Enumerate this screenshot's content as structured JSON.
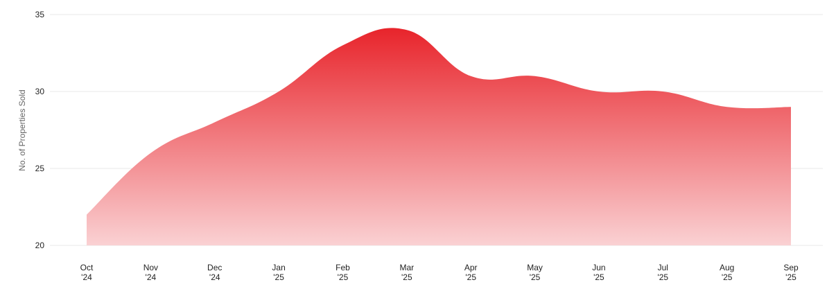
{
  "chart_data": {
    "type": "area",
    "title": "",
    "ylabel": "No. of Properties Sold",
    "xlabel": "",
    "ylim": [
      20,
      35
    ],
    "yticks": [
      20,
      25,
      30,
      35
    ],
    "categories": [
      [
        "Oct",
        "'24"
      ],
      [
        "Nov",
        "'24"
      ],
      [
        "Dec",
        "'24"
      ],
      [
        "Jan",
        "'25"
      ],
      [
        "Feb",
        "'25"
      ],
      [
        "Mar",
        "'25"
      ],
      [
        "Apr",
        "'25"
      ],
      [
        "May",
        "'25"
      ],
      [
        "Jun",
        "'25"
      ],
      [
        "Jul",
        "'25"
      ],
      [
        "Aug",
        "'25"
      ],
      [
        "Sep",
        "'25"
      ]
    ],
    "series": [
      {
        "values": [
          22,
          26,
          28,
          30,
          33,
          34,
          31,
          31,
          30,
          30,
          29,
          29
        ]
      }
    ],
    "grid": true,
    "legend": "none",
    "colors": {
      "fill_top": "#e8242b",
      "fill_bottom": "#fad1d3",
      "grid": "#e9e9e9"
    }
  }
}
